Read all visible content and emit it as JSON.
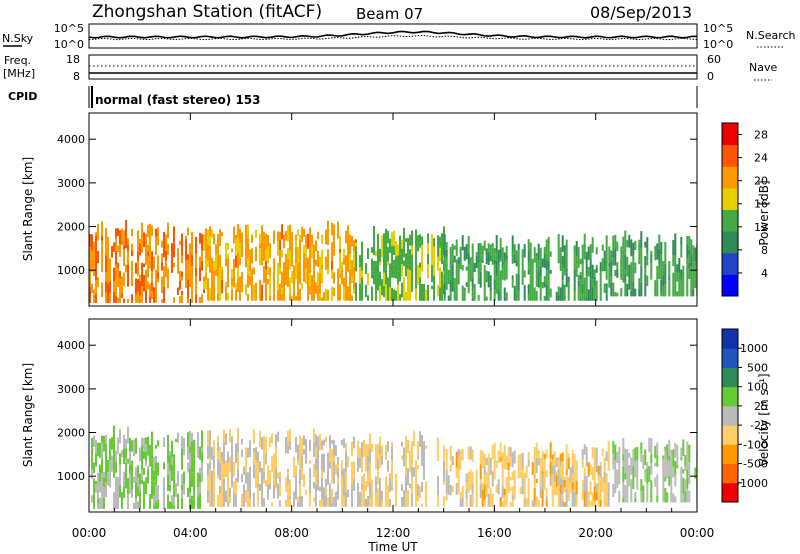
{
  "header": {
    "station": "Zhongshan Station (fitACF)",
    "beam": "Beam 07",
    "date": "08/Sep/2013"
  },
  "panels": {
    "nsky_label": "N.Sky",
    "nsky_ticks": [
      "10^5",
      "10^0"
    ],
    "nsearch_label": "N.Search",
    "nsearch_ticks": [
      "10^5",
      "10^0"
    ],
    "freq_label_1": "Freq.",
    "freq_label_2": "[MHz]",
    "freq_ticks": [
      "18",
      "8"
    ],
    "nave_label": "Nave",
    "nave_ticks": [
      "60",
      "0"
    ],
    "cpid_label": "CPID",
    "cpid_text": "normal (fast stereo) 153"
  },
  "colors": {
    "power_scale": [
      "#0000ff",
      "#2244c8",
      "#2e8b57",
      "#44aa44",
      "#e8d000",
      "#ff9900",
      "#ff5500",
      "#ee0000"
    ],
    "velocity_scale": [
      "#ee0000",
      "#ff6600",
      "#ff9900",
      "#ffcc66",
      "#bbbbbb",
      "#66cc33",
      "#2e8b57",
      "#2255bb",
      "#1133aa"
    ]
  },
  "chart_data": [
    {
      "type": "heatmap",
      "name": "power",
      "xlabel": "Time UT",
      "ylabel": "Slant Range [km]",
      "xlim": [
        0,
        24
      ],
      "ylim": [
        180,
        4600
      ],
      "y_ticks": [
        "1000",
        "2000",
        "3000",
        "4000"
      ],
      "x_ticks": [
        "00:00",
        "04:00",
        "08:00",
        "12:00",
        "16:00",
        "20:00",
        "00:00"
      ],
      "colorbar_label": "Power [dB]",
      "colorbar_ticks": [
        "4",
        "8",
        "12",
        "16",
        "20",
        "24",
        "28"
      ],
      "colorbar_range": [
        0,
        30
      ],
      "echo_regions": [
        {
          "t0": 0.0,
          "t1": 4.5,
          "r0": 250,
          "r1": 1800,
          "level": 22
        },
        {
          "t0": 4.5,
          "t1": 10.5,
          "r0": 300,
          "r1": 1800,
          "level": 20
        },
        {
          "t0": 10.5,
          "t1": 14.0,
          "r0": 300,
          "r1": 1700,
          "level": 14
        },
        {
          "t0": 14.0,
          "t1": 20.5,
          "r0": 300,
          "r1": 1500,
          "level": 12
        },
        {
          "t0": 20.5,
          "t1": 24.0,
          "r0": 400,
          "r1": 1600,
          "level": 12
        }
      ]
    },
    {
      "type": "heatmap",
      "name": "velocity",
      "xlabel": "Time UT",
      "ylabel": "Slant Range [km]",
      "xlim": [
        0,
        24
      ],
      "ylim": [
        180,
        4600
      ],
      "y_ticks": [
        "1000",
        "2000",
        "3000",
        "4000"
      ],
      "x_ticks": [
        "00:00",
        "04:00",
        "08:00",
        "12:00",
        "16:00",
        "20:00",
        "00:00"
      ],
      "colorbar_label": "Velocity [m s⁻¹]",
      "colorbar_ticks": [
        "1000",
        "500",
        "100",
        "25",
        "-25",
        "-100",
        "-500",
        "-1000"
      ],
      "colorbar_range": [
        -1500,
        1500
      ],
      "echo_regions": [
        {
          "t0": 0.0,
          "t1": 4.5,
          "r0": 250,
          "r1": 1800,
          "level": 200
        },
        {
          "t0": 4.5,
          "t1": 10.5,
          "r0": 300,
          "r1": 1800,
          "level": -150
        },
        {
          "t0": 10.5,
          "t1": 14.0,
          "r0": 300,
          "r1": 1700,
          "level": -200
        },
        {
          "t0": 14.0,
          "t1": 20.5,
          "r0": 300,
          "r1": 1500,
          "level": -300
        },
        {
          "t0": 20.5,
          "t1": 24.0,
          "r0": 400,
          "r1": 1600,
          "level": 100
        }
      ]
    }
  ]
}
